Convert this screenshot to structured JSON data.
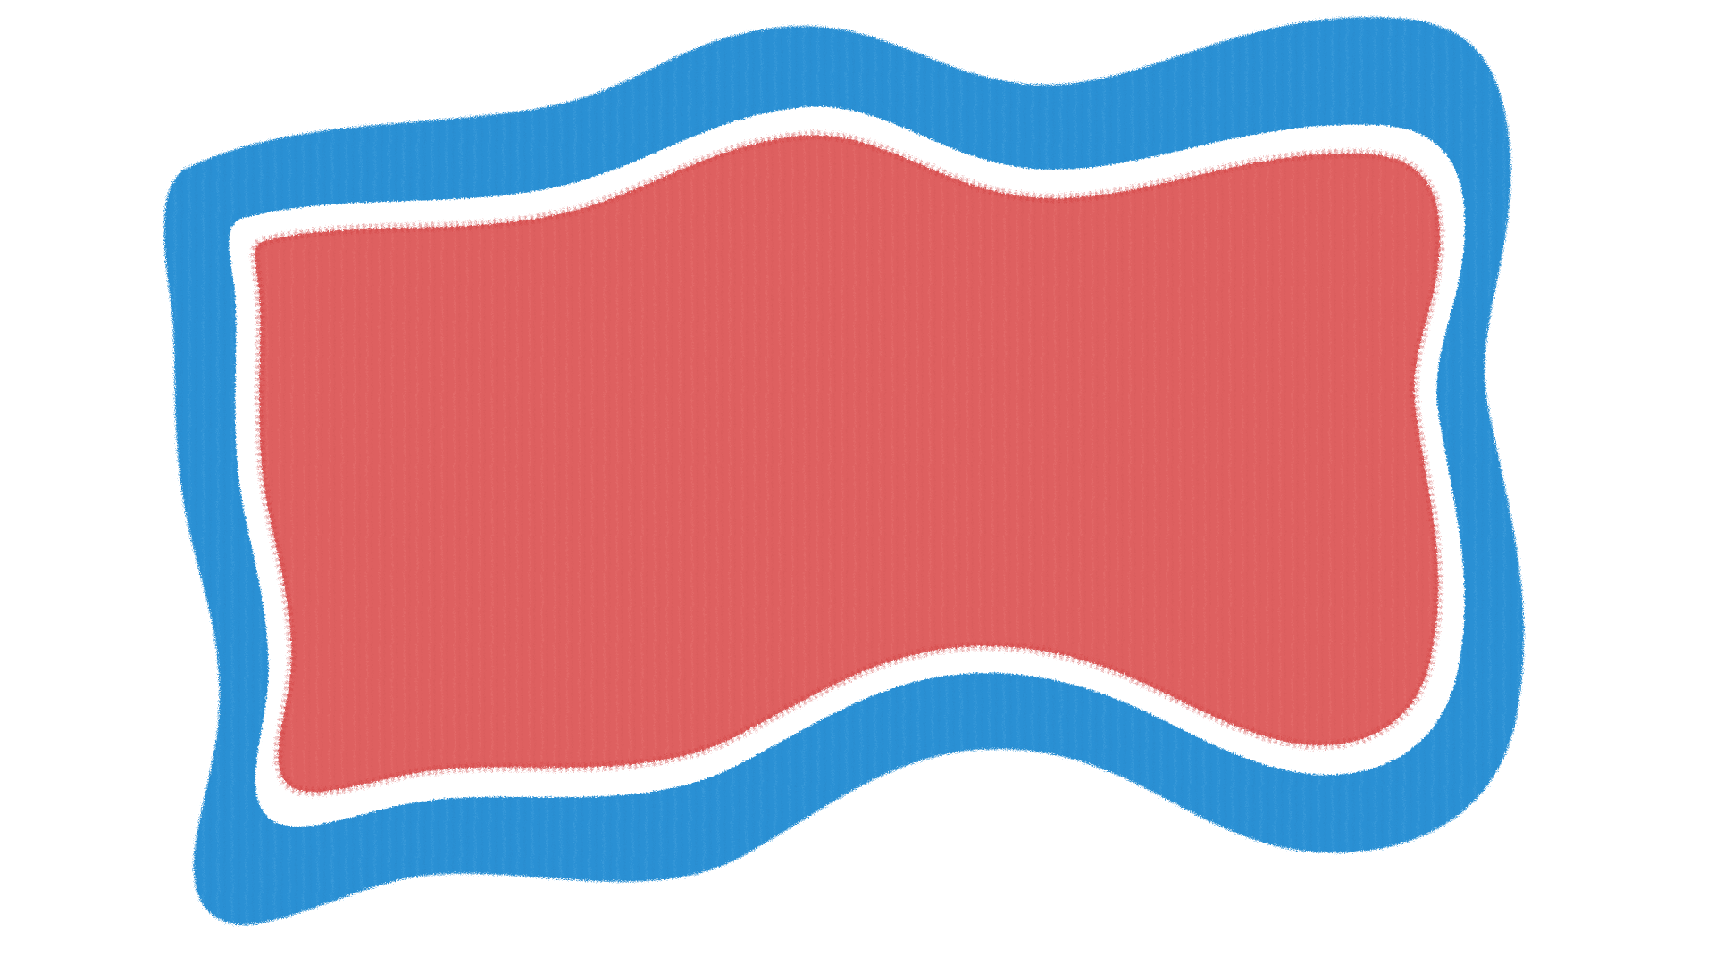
{
  "artwork": {
    "subject": "wavy-banner-shape",
    "shapes": [
      {
        "role": "outer-frame",
        "color": "#2c90d4"
      },
      {
        "role": "gap-ring",
        "color": "#ffffff"
      },
      {
        "role": "inner-fill",
        "color": "#de6160"
      }
    ],
    "brush_edge_colors": {
      "outer": "#5aa9de",
      "inner": "#cf3a3a"
    }
  }
}
